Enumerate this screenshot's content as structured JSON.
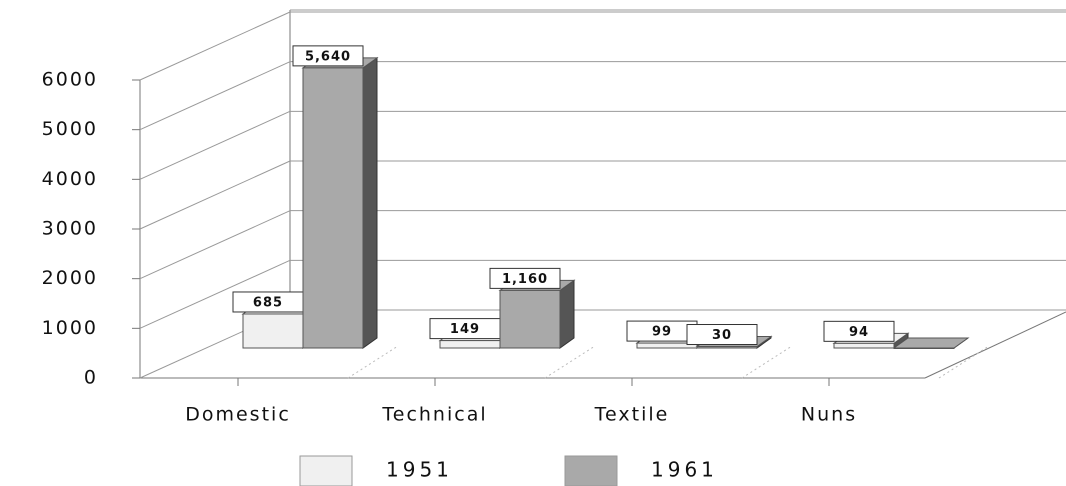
{
  "chart_data": {
    "type": "bar3d",
    "categories": [
      "Domestic",
      "Technical",
      "Textile",
      "Nuns"
    ],
    "series": [
      {
        "name": "1951",
        "color": "#f0f0f0",
        "values": [
          685,
          149,
          99,
          94
        ]
      },
      {
        "name": "1961",
        "color": "#a9a9a9",
        "values": [
          5640,
          1160,
          30,
          0
        ],
        "value_labels": [
          "5,640",
          "1,160",
          "30",
          null
        ]
      }
    ],
    "ylim": [
      0,
      6000
    ],
    "yticks": [
      0,
      1000,
      2000,
      3000,
      4000,
      5000,
      6000
    ],
    "grid": true,
    "legend": "bottom"
  }
}
